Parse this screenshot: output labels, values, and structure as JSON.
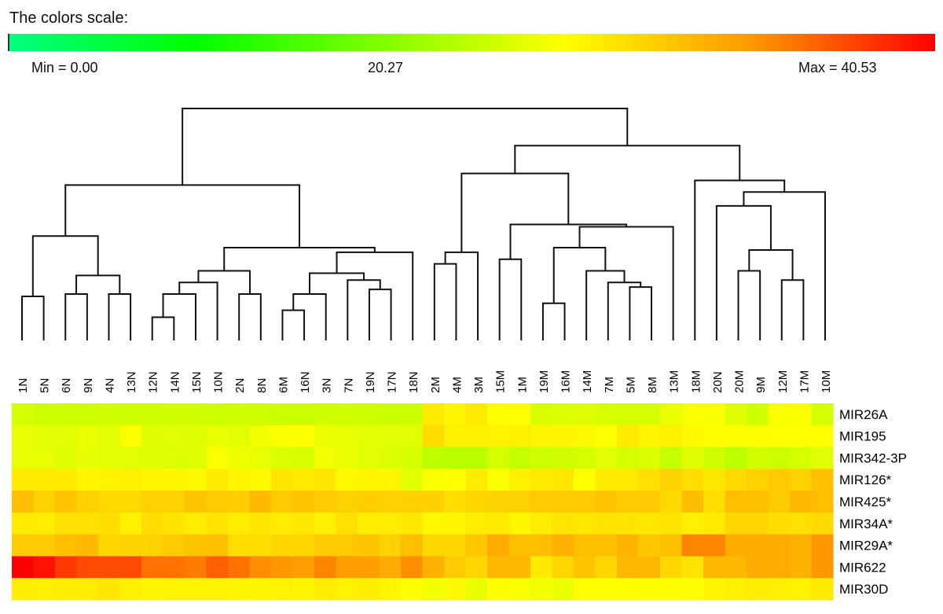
{
  "chart_data": {
    "type": "heatmap",
    "title": "The colors scale:",
    "color_scale": {
      "min_label": "Min = 0.00",
      "mid_label": "20.27",
      "max_label": "Max = 40.53",
      "min": 0.0,
      "mid": 20.27,
      "max": 40.53,
      "stops": [
        {
          "pos": 0.0,
          "color": "#00ff80"
        },
        {
          "pos": 0.2,
          "color": "#00ff00"
        },
        {
          "pos": 0.6,
          "color": "#ffff00"
        },
        {
          "pos": 0.8,
          "color": "#ff9900"
        },
        {
          "pos": 1.0,
          "color": "#ff0000"
        }
      ]
    },
    "columns": [
      "1N",
      "5N",
      "6N",
      "9N",
      "4N",
      "13N",
      "12N",
      "14N",
      "15N",
      "10N",
      "2N",
      "8N",
      "6M",
      "16N",
      "3N",
      "7N",
      "19N",
      "17N",
      "18N",
      "2M",
      "4M",
      "3M",
      "15M",
      "1M",
      "19M",
      "16M",
      "14M",
      "7M",
      "5M",
      "8M",
      "13M",
      "18M",
      "20N",
      "20M",
      "9M",
      "12M",
      "17M",
      "10M"
    ],
    "rows": [
      "MIR26A",
      "MIR195",
      "MIR342-3P",
      "MIR126*",
      "MIR425*",
      "MIR34A*",
      "MIR29A*",
      "MIR622",
      "MIR30D"
    ],
    "values": [
      [
        21.5,
        21.0,
        21.2,
        21.0,
        21.3,
        21.2,
        21.2,
        21.3,
        21.3,
        21.0,
        21.3,
        21.2,
        21.0,
        21.0,
        21.2,
        21.3,
        21.2,
        21.0,
        21.0,
        26.0,
        25.0,
        26.0,
        24.5,
        24.3,
        21.8,
        22.0,
        22.3,
        21.8,
        21.5,
        21.5,
        23.0,
        24.0,
        24.0,
        22.3,
        21.3,
        24.0,
        24.2,
        21.6
      ],
      [
        22.8,
        22.5,
        22.5,
        23.0,
        22.5,
        24.0,
        22.3,
        22.5,
        22.3,
        22.8,
        22.5,
        23.5,
        24.0,
        24.3,
        23.0,
        22.8,
        22.5,
        22.5,
        22.5,
        27.0,
        25.5,
        25.5,
        25.3,
        25.5,
        25.0,
        25.0,
        24.8,
        24.3,
        26.0,
        25.0,
        25.5,
        24.8,
        24.5,
        24.5,
        24.5,
        24.3,
        24.3,
        24.3
      ],
      [
        22.8,
        22.8,
        22.3,
        22.8,
        22.5,
        22.5,
        22.3,
        22.0,
        22.3,
        24.0,
        23.3,
        22.8,
        22.0,
        21.8,
        23.5,
        23.0,
        22.5,
        22.0,
        21.8,
        20.0,
        19.8,
        19.8,
        21.5,
        20.5,
        21.2,
        21.3,
        21.5,
        22.5,
        21.5,
        22.0,
        20.5,
        22.3,
        21.2,
        20.0,
        21.3,
        21.0,
        21.5,
        22.5
      ],
      [
        26.0,
        26.0,
        26.0,
        25.0,
        25.3,
        25.5,
        25.0,
        25.0,
        24.8,
        26.0,
        25.0,
        24.8,
        26.3,
        26.0,
        26.3,
        24.8,
        25.0,
        25.0,
        22.5,
        24.0,
        24.3,
        25.8,
        24.0,
        25.5,
        26.0,
        26.2,
        24.3,
        26.0,
        26.0,
        26.8,
        27.8,
        27.0,
        26.2,
        27.3,
        28.0,
        28.5,
        28.0,
        29.3
      ],
      [
        29.5,
        28.0,
        29.0,
        28.0,
        27.3,
        27.3,
        28.0,
        28.0,
        29.0,
        28.5,
        28.3,
        29.8,
        28.5,
        29.0,
        28.5,
        28.0,
        28.3,
        28.0,
        28.0,
        28.0,
        27.0,
        27.5,
        27.8,
        28.0,
        28.5,
        28.5,
        28.5,
        29.0,
        28.5,
        28.5,
        27.3,
        29.5,
        27.0,
        29.5,
        29.3,
        28.5,
        30.0,
        29.5
      ],
      [
        26.0,
        25.8,
        26.8,
        26.8,
        27.0,
        25.5,
        27.0,
        26.5,
        25.8,
        26.5,
        25.8,
        26.3,
        25.8,
        26.2,
        25.5,
        26.8,
        25.8,
        25.8,
        26.2,
        24.8,
        25.0,
        25.8,
        26.0,
        25.0,
        25.8,
        26.5,
        26.2,
        26.5,
        26.5,
        26.2,
        26.5,
        25.5,
        26.0,
        27.5,
        27.5,
        27.0,
        26.8,
        27.3
      ],
      [
        28.5,
        28.5,
        29.5,
        29.8,
        27.5,
        27.8,
        28.0,
        28.5,
        29.0,
        29.5,
        27.0,
        27.0,
        27.5,
        27.5,
        28.5,
        28.5,
        29.0,
        28.0,
        29.5,
        27.5,
        27.5,
        28.8,
        31.0,
        29.5,
        29.5,
        30.5,
        29.5,
        29.5,
        30.3,
        28.8,
        29.3,
        33.5,
        33.5,
        31.0,
        31.0,
        31.0,
        30.5,
        32.5
      ],
      [
        40.5,
        39.5,
        37.5,
        36.5,
        36.5,
        36.5,
        34.5,
        34.5,
        34.0,
        35.5,
        34.5,
        33.0,
        32.5,
        32.0,
        33.5,
        32.0,
        32.0,
        31.0,
        33.0,
        30.5,
        28.5,
        27.5,
        30.0,
        30.0,
        26.0,
        27.5,
        29.0,
        27.5,
        30.0,
        30.0,
        27.5,
        26.5,
        30.0,
        30.0,
        31.0,
        31.0,
        30.5,
        32.5
      ],
      [
        25.8,
        25.5,
        25.8,
        25.8,
        26.3,
        25.5,
        25.0,
        25.3,
        25.3,
        25.3,
        25.0,
        25.0,
        25.3,
        25.0,
        25.8,
        25.3,
        25.8,
        25.0,
        24.5,
        23.5,
        24.8,
        22.8,
        24.5,
        24.0,
        23.5,
        23.0,
        24.3,
        24.3,
        24.3,
        24.5,
        24.5,
        24.5,
        25.0,
        25.5,
        25.8,
        25.5,
        25.3,
        26.0
      ]
    ],
    "dendrogram": {
      "leaf_order": [
        "1N",
        "5N",
        "6N",
        "9N",
        "4N",
        "13N",
        "12N",
        "14N",
        "15N",
        "10N",
        "2N",
        "8N",
        "6M",
        "16N",
        "3N",
        "7N",
        "19N",
        "17N",
        "18N",
        "2M",
        "4M",
        "3M",
        "15M",
        "1M",
        "19M",
        "16M",
        "14M",
        "7M",
        "5M",
        "8M",
        "13M",
        "18M",
        "20N",
        "20M",
        "9M",
        "12M",
        "17M",
        "10M"
      ],
      "merges": [
        {
          "a": "1N",
          "b": "5N",
          "height": 0.19
        },
        {
          "a": "6N",
          "b": "9N",
          "height": 0.2
        },
        {
          "a": "4N",
          "b": "13N",
          "height": 0.2
        },
        {
          "a": "6N|9N",
          "b": "4N|13N",
          "height": 0.28
        },
        {
          "a": "1N|5N",
          "b": "6N|9N|4N|13N",
          "height": 0.45
        },
        {
          "a": "12N",
          "b": "14N",
          "height": 0.1
        },
        {
          "a": "12N|14N",
          "b": "15N",
          "height": 0.2
        },
        {
          "a": "12N|14N|15N",
          "b": "10N",
          "height": 0.25
        },
        {
          "a": "2N",
          "b": "8N",
          "height": 0.2
        },
        {
          "a": "12N|14N|15N|10N",
          "b": "2N|8N",
          "height": 0.3
        },
        {
          "a": "6M",
          "b": "16N",
          "height": 0.13
        },
        {
          "a": "6M|16N",
          "b": "3N",
          "height": 0.2
        },
        {
          "a": "19N",
          "b": "17N",
          "height": 0.22
        },
        {
          "a": "7N",
          "b": "19N|17N",
          "height": 0.26
        },
        {
          "a": "6M|16N|3N",
          "b": "7N|19N|17N",
          "height": 0.29
        },
        {
          "a": "6M..17N",
          "b": "18N",
          "height": 0.38
        },
        {
          "a": "12N..8N",
          "b": "6M..18N",
          "height": 0.4
        },
        {
          "a": "1N..13N",
          "b": "12N..18N",
          "height": 0.67
        },
        {
          "a": "2M",
          "b": "4M",
          "height": 0.33
        },
        {
          "a": "2M|4M",
          "b": "3M",
          "height": 0.38
        },
        {
          "a": "15M",
          "b": "1M",
          "height": 0.35
        },
        {
          "a": "19M",
          "b": "16M",
          "height": 0.16
        },
        {
          "a": "5M",
          "b": "8M",
          "height": 0.23
        },
        {
          "a": "7M",
          "b": "5M|8M",
          "height": 0.25
        },
        {
          "a": "14M",
          "b": "7M|5M|8M",
          "height": 0.3
        },
        {
          "a": "19M|16M",
          "b": "14M..8M",
          "height": 0.4
        },
        {
          "a": "19M..8M",
          "b": "13M",
          "height": 0.49
        },
        {
          "a": "15M|1M",
          "b": "19M..13M",
          "height": 0.5
        },
        {
          "a": "2M|4M|3M",
          "b": "15M..13M",
          "height": 0.72
        },
        {
          "a": "20M",
          "b": "9M",
          "height": 0.3
        },
        {
          "a": "12M",
          "b": "17M",
          "height": 0.26
        },
        {
          "a": "20M|9M",
          "b": "12M|17M",
          "height": 0.39
        },
        {
          "a": "20N",
          "b": "20M..17M",
          "height": 0.58
        },
        {
          "a": "20N..17M",
          "b": "10M",
          "height": 0.64
        },
        {
          "a": "18M",
          "b": "20N..10M",
          "height": 0.69
        },
        {
          "a": "2M..13M",
          "b": "18M..10M",
          "height": 0.84
        },
        {
          "a": "left",
          "b": "right",
          "height": 1.0
        }
      ]
    }
  }
}
